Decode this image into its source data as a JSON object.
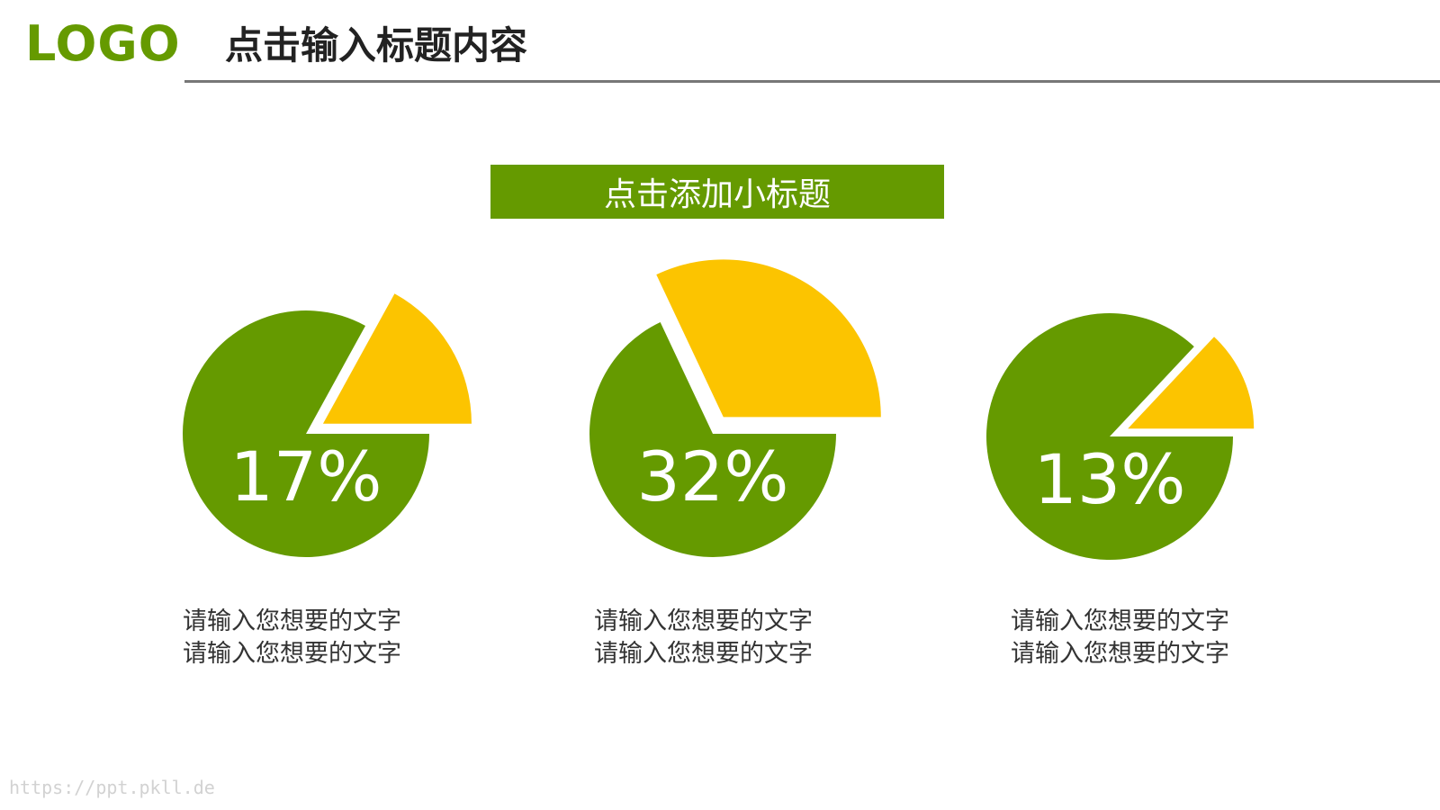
{
  "header": {
    "logo": "LOGO",
    "title": "点击输入标题内容"
  },
  "subtitle": "点击添加小标题",
  "colors": {
    "primary": "#659A00",
    "accent": "#FCC400",
    "rule": "#777777",
    "text": "#333333"
  },
  "chart_data": [
    {
      "type": "pie",
      "values": [
        17,
        83
      ],
      "label": "17%",
      "caption": [
        "请输入您想要的文字",
        "请输入您想要的文字"
      ]
    },
    {
      "type": "pie",
      "values": [
        32,
        68
      ],
      "label": "32%",
      "caption": [
        "请输入您想要的文字",
        "请输入您想要的文字"
      ]
    },
    {
      "type": "pie",
      "values": [
        13,
        87
      ],
      "label": "13%",
      "caption": [
        "请输入您想要的文字",
        "请输入您想要的文字"
      ]
    }
  ],
  "footer": {
    "url": "https://ppt.pkll.de"
  }
}
